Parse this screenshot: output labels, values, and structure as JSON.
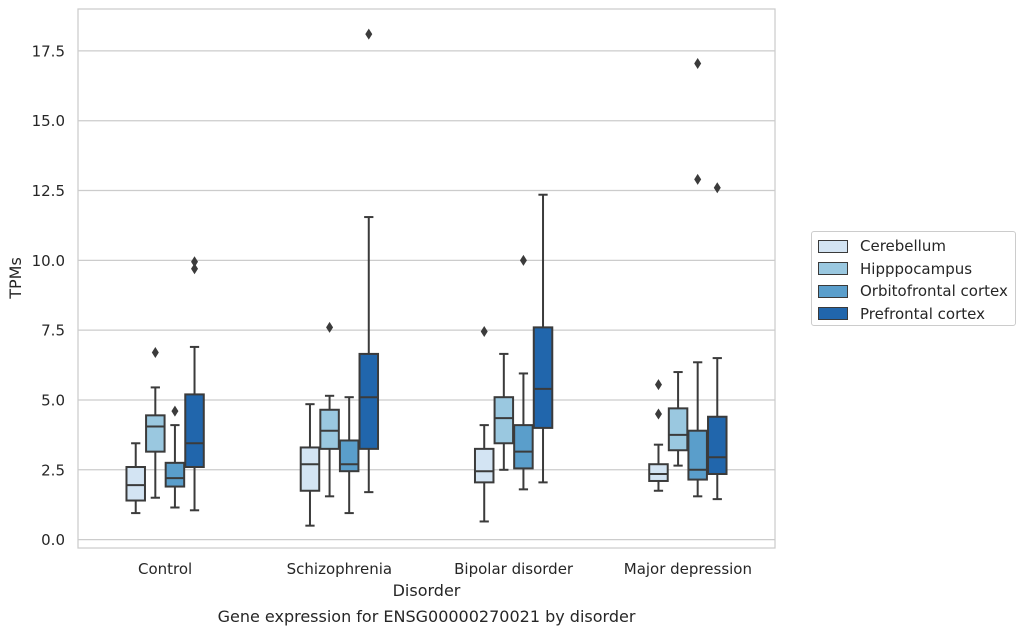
{
  "chart_data": {
    "type": "box",
    "title": "Gene expression for ENSG00000270021 by disorder",
    "xlabel": "Disorder",
    "ylabel": "TPMs",
    "ylim": [
      -0.3,
      19.0
    ],
    "yticks": [
      0.0,
      2.5,
      5.0,
      7.5,
      10.0,
      12.5,
      15.0,
      17.5
    ],
    "ytick_labels": [
      "0.0",
      "2.5",
      "5.0",
      "7.5",
      "10.0",
      "12.5",
      "15.0",
      "17.5"
    ],
    "grid": "horizontal",
    "legend_position": "right",
    "categories": [
      "Control",
      "Schizophrenia",
      "Bipolar disorder",
      "Major depression"
    ],
    "series": [
      {
        "name": "Cerebellum",
        "color": "#d3e4f3",
        "boxes": [
          {
            "whislo": 0.95,
            "q1": 1.4,
            "med": 1.95,
            "q3": 2.6,
            "whishi": 3.45,
            "fliers": []
          },
          {
            "whislo": 0.5,
            "q1": 1.75,
            "med": 2.7,
            "q3": 3.3,
            "whishi": 4.85,
            "fliers": []
          },
          {
            "whislo": 0.65,
            "q1": 2.05,
            "med": 2.45,
            "q3": 3.25,
            "whishi": 4.1,
            "fliers": [
              7.45
            ]
          },
          {
            "whislo": 1.75,
            "q1": 2.1,
            "med": 2.35,
            "q3": 2.7,
            "whishi": 3.4,
            "fliers": [
              4.5,
              5.55
            ]
          }
        ]
      },
      {
        "name": "Hipppocampus",
        "color": "#9ac8e0",
        "boxes": [
          {
            "whislo": 1.5,
            "q1": 3.15,
            "med": 4.05,
            "q3": 4.45,
            "whishi": 5.45,
            "fliers": [
              6.7
            ]
          },
          {
            "whislo": 1.55,
            "q1": 3.25,
            "med": 3.9,
            "q3": 4.65,
            "whishi": 5.15,
            "fliers": [
              7.6
            ]
          },
          {
            "whislo": 2.5,
            "q1": 3.45,
            "med": 4.35,
            "q3": 5.1,
            "whishi": 6.65,
            "fliers": []
          },
          {
            "whislo": 2.65,
            "q1": 3.2,
            "med": 3.75,
            "q3": 4.7,
            "whishi": 6.0,
            "fliers": []
          }
        ]
      },
      {
        "name": "Orbitofrontal cortex",
        "color": "#5a9ecb",
        "boxes": [
          {
            "whislo": 1.15,
            "q1": 1.9,
            "med": 2.2,
            "q3": 2.75,
            "whishi": 4.1,
            "fliers": [
              4.6
            ]
          },
          {
            "whislo": 0.95,
            "q1": 2.45,
            "med": 2.7,
            "q3": 3.55,
            "whishi": 5.1,
            "fliers": []
          },
          {
            "whislo": 1.8,
            "q1": 2.55,
            "med": 3.15,
            "q3": 4.1,
            "whishi": 5.95,
            "fliers": [
              10.0
            ]
          },
          {
            "whislo": 1.55,
            "q1": 2.15,
            "med": 2.5,
            "q3": 3.9,
            "whishi": 6.35,
            "fliers": [
              12.9,
              17.05
            ]
          }
        ]
      },
      {
        "name": "Prefrontal cortex",
        "color": "#2166ac",
        "boxes": [
          {
            "whislo": 1.05,
            "q1": 2.6,
            "med": 3.45,
            "q3": 5.2,
            "whishi": 6.9,
            "fliers": [
              9.7,
              9.95
            ]
          },
          {
            "whislo": 1.7,
            "q1": 3.25,
            "med": 5.1,
            "q3": 6.65,
            "whishi": 11.55,
            "fliers": [
              18.1
            ]
          },
          {
            "whislo": 2.05,
            "q1": 4.0,
            "med": 5.4,
            "q3": 7.6,
            "whishi": 12.35,
            "fliers": []
          },
          {
            "whislo": 1.45,
            "q1": 2.35,
            "med": 2.95,
            "q3": 4.4,
            "whishi": 6.5,
            "fliers": [
              12.6
            ]
          }
        ]
      }
    ]
  }
}
